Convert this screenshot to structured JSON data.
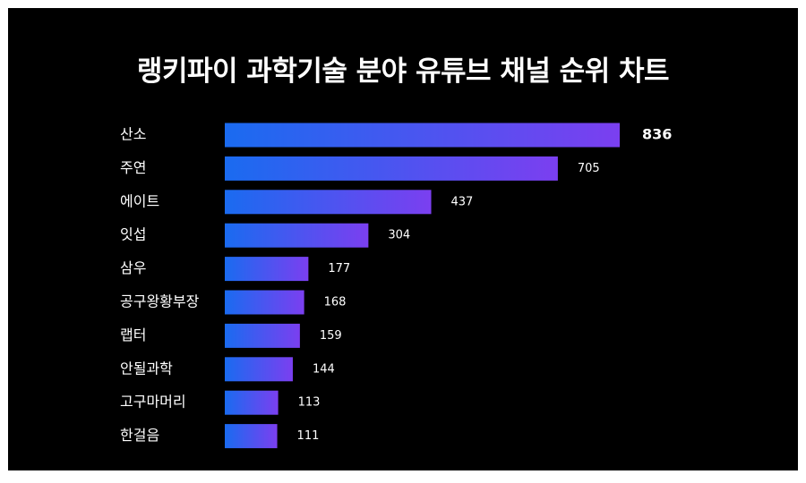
{
  "chart_data": {
    "type": "bar",
    "orientation": "horizontal",
    "title": "랭키파이 과학기술 분야 유튜브 채널 순위 차트",
    "categories": [
      "산소",
      "주연",
      "에이트",
      "잇섭",
      "삼우",
      "공구왕황부장",
      "랩터",
      "안될과학",
      "고구마머리",
      "한걸음"
    ],
    "values": [
      836,
      705,
      437,
      304,
      177,
      168,
      159,
      144,
      113,
      111
    ],
    "value_labels": [
      "836",
      "705",
      "437",
      "304",
      "177",
      "168",
      "159",
      "144",
      "113",
      "111"
    ],
    "xlim": [
      0,
      836
    ],
    "grid": false,
    "legend": "none",
    "colors": {
      "background": "#000000",
      "bar_start": "#1a6bf0",
      "bar_end": "#7b3ff0",
      "text": "#ffffff"
    }
  }
}
